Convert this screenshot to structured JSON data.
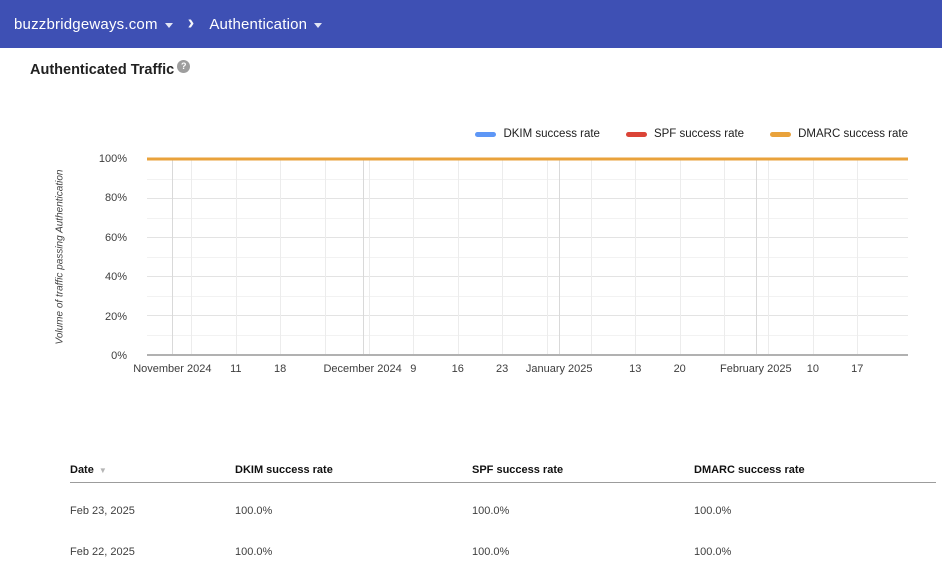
{
  "header": {
    "domain": "buzzbridgeways.com",
    "section": "Authentication"
  },
  "page": {
    "title": "Authenticated Traffic",
    "help_icon": "?"
  },
  "chart_data": {
    "type": "line",
    "title": "Authenticated Traffic",
    "legend_position": "top-right",
    "grid": true,
    "y_axis": {
      "label": "Volume of traffic passing Authentication",
      "min": 0,
      "max": 100,
      "minor_step": 10,
      "major_step": 20,
      "ticks": [
        "0%",
        "20%",
        "40%",
        "60%",
        "80%",
        "100%"
      ]
    },
    "x_axis": {
      "span_days": 120,
      "range": "late Oct 2024 – Feb 2025",
      "ticks": [
        {
          "day": 4,
          "label": "November 2024",
          "type": "month"
        },
        {
          "day": 7,
          "label": "",
          "type": "week"
        },
        {
          "day": 14,
          "label": "11",
          "type": "week"
        },
        {
          "day": 21,
          "label": "18",
          "type": "week"
        },
        {
          "day": 28,
          "label": "",
          "type": "week"
        },
        {
          "day": 34,
          "label": "December 2024",
          "type": "month"
        },
        {
          "day": 35,
          "label": "",
          "type": "week"
        },
        {
          "day": 42,
          "label": "9",
          "type": "week"
        },
        {
          "day": 49,
          "label": "16",
          "type": "week"
        },
        {
          "day": 56,
          "label": "23",
          "type": "week"
        },
        {
          "day": 63,
          "label": "",
          "type": "week"
        },
        {
          "day": 65,
          "label": "January 2025",
          "type": "month"
        },
        {
          "day": 70,
          "label": "",
          "type": "week"
        },
        {
          "day": 77,
          "label": "13",
          "type": "week"
        },
        {
          "day": 84,
          "label": "20",
          "type": "week"
        },
        {
          "day": 91,
          "label": "",
          "type": "week"
        },
        {
          "day": 96,
          "label": "February 2025",
          "type": "month"
        },
        {
          "day": 98,
          "label": "",
          "type": "week"
        },
        {
          "day": 105,
          "label": "10",
          "type": "week"
        },
        {
          "day": 112,
          "label": "17",
          "type": "week"
        }
      ]
    },
    "series": [
      {
        "name": "DKIM success rate",
        "color": "#5e97f6",
        "value_percent": 100
      },
      {
        "name": "SPF success rate",
        "color": "#db4437",
        "value_percent": 100
      },
      {
        "name": "DMARC success rate",
        "color": "#e9a23b",
        "value_percent": 100
      }
    ]
  },
  "table": {
    "columns": [
      "Date",
      "DKIM success rate",
      "SPF success rate",
      "DMARC success rate"
    ],
    "sort_icon": "▼",
    "rows": [
      {
        "date": "Feb 23, 2025",
        "dkim": "100.0%",
        "spf": "100.0%",
        "dmarc": "100.0%"
      },
      {
        "date": "Feb 22, 2025",
        "dkim": "100.0%",
        "spf": "100.0%",
        "dmarc": "100.0%"
      }
    ]
  },
  "colors": {
    "appbar_bg": "#3e50b4",
    "dkim": "#5e97f6",
    "spf": "#db4437",
    "dmarc": "#e9a23b"
  }
}
